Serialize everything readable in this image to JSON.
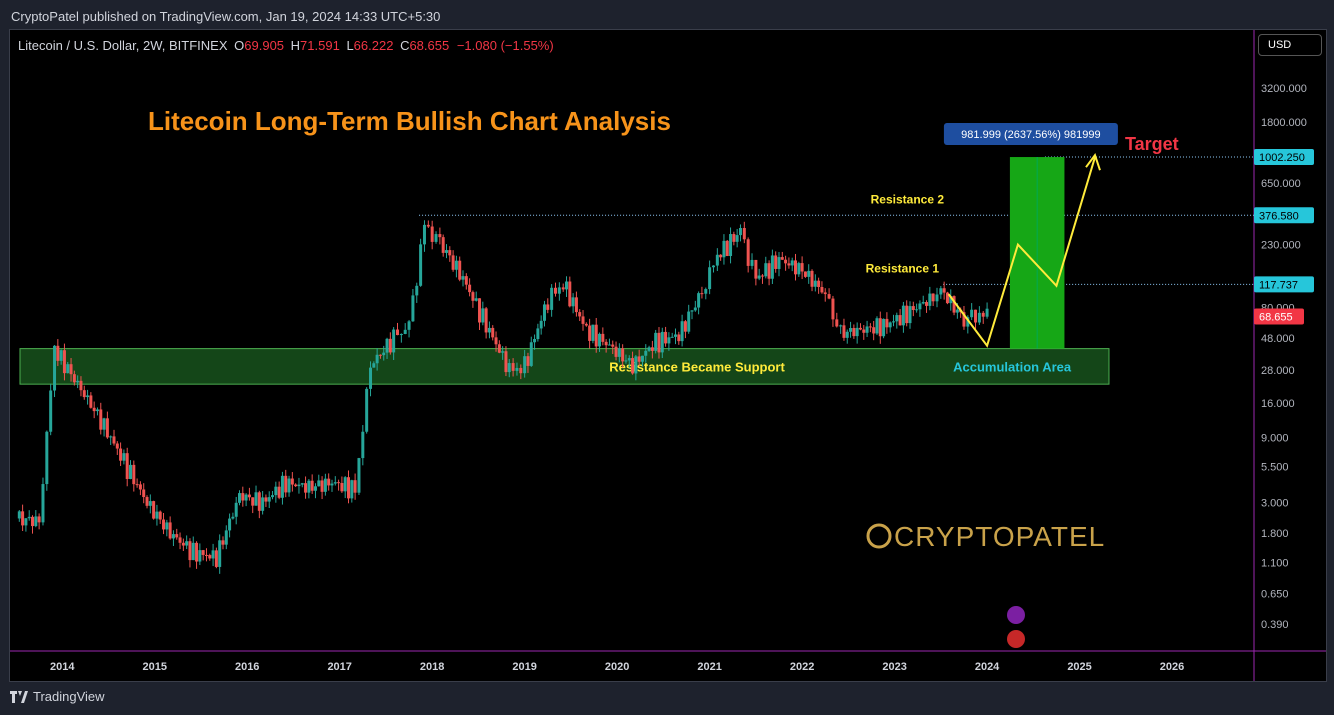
{
  "header": {
    "published": "CryptoPatel published on TradingView.com, Jan 19, 2024 14:33 UTC+5:30"
  },
  "legend": {
    "symbol": "Litecoin / U.S. Dollar, 2W, BITFINEX",
    "open_label": "O",
    "open": "69.905",
    "high_label": "H",
    "high": "71.591",
    "low_label": "L",
    "low": "66.222",
    "close_label": "C",
    "close": "68.655",
    "change": "−1.080 (−1.55%)"
  },
  "currency_button": "USD",
  "footer": {
    "brand": "TradingView"
  },
  "colors": {
    "background": "#000000",
    "up": "#26a69a",
    "down": "#ef5350",
    "zone": "#1b5e20",
    "title": "#f7931a",
    "annotation": "#ffeb3b",
    "target": "#f23645",
    "price_tag": "#26c6da"
  },
  "chart_data": {
    "type": "candlestick",
    "title": "Litecoin Long-Term Bullish Chart Analysis",
    "y_scale": "log",
    "y_ticks": [
      "3200.000",
      "1800.000",
      "650.000",
      "230.000",
      "80.000",
      "48.000",
      "28.000",
      "16.000",
      "9.000",
      "5.500",
      "3.000",
      "1.800",
      "1.100",
      "0.650",
      "0.390"
    ],
    "x_ticks": [
      "2014",
      "2015",
      "2016",
      "2017",
      "2018",
      "2019",
      "2020",
      "2021",
      "2022",
      "2023",
      "2024",
      "2025",
      "2026"
    ],
    "x_range": [
      "2013-07",
      "2026-08"
    ],
    "series": [
      {
        "name": "",
        "x": [
          "2013-07",
          "2013-10",
          "2013-12",
          "2014-03",
          "2014-06",
          "2014-09",
          "2014-12",
          "2015-03",
          "2015-06",
          "2015-09",
          "2015-12",
          "2016-03",
          "2016-06",
          "2016-09",
          "2016-12",
          "2017-03",
          "2017-05",
          "2017-08",
          "2017-10",
          "2017-12",
          "2018-02",
          "2018-05",
          "2018-08",
          "2018-11",
          "2019-01",
          "2019-04",
          "2019-06",
          "2019-09",
          "2019-12",
          "2020-03",
          "2020-06",
          "2020-09",
          "2020-12",
          "2021-02",
          "2021-05",
          "2021-07",
          "2021-10",
          "2022-01",
          "2022-04",
          "2022-06",
          "2022-09",
          "2022-12",
          "2023-03",
          "2023-06",
          "2023-07",
          "2023-10",
          "2023-12",
          "2024-01"
        ],
        "close": [
          2.3,
          2.2,
          40,
          22,
          12,
          6,
          3,
          1.8,
          1.3,
          1.2,
          3.4,
          3.0,
          4.2,
          3.9,
          4.2,
          3.8,
          30,
          48,
          60,
          320,
          240,
          130,
          60,
          28,
          30,
          90,
          120,
          55,
          42,
          30,
          45,
          50,
          105,
          190,
          290,
          130,
          180,
          150,
          100,
          52,
          55,
          60,
          75,
          95,
          108,
          65,
          72,
          68.655
        ]
      }
    ],
    "levels": [
      {
        "label": "Resistance 2",
        "value": 376.58,
        "tag": "376.580"
      },
      {
        "label": "Resistance 1",
        "value": 117.737,
        "tag": "117.737"
      },
      {
        "label": "Target",
        "value": 1002.25,
        "tag": "1002.250"
      }
    ],
    "current_price_tag": "68.655",
    "zone": {
      "label": "Resistance Became Support",
      "low": 22,
      "high": 40
    },
    "zone_right_label": "Accumulation Area",
    "measure_label": "981.999 (2637.56%) 981999",
    "projection": {
      "x": [
        "2023-08",
        "2024-01",
        "2024-05",
        "2024-10",
        "2025-03"
      ],
      "y": [
        100,
        42,
        230,
        115,
        1000
      ]
    },
    "watermark": "CRYPTOPATEL"
  }
}
